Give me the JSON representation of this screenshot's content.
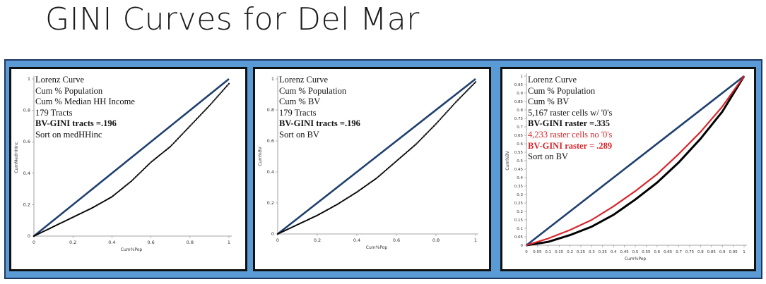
{
  "slide": {
    "title": "GINI Curves for Del Mar"
  },
  "chart_data": [
    {
      "type": "line",
      "legend": [
        "Lorenz Curve",
        "Cum % Population",
        "Cum % Median HH Income",
        "179 Tracts",
        "BV-GINI tracts =.196",
        "Sort on medHHinc"
      ],
      "xlabel": "Cum%Pop",
      "ylabel": "CumMedHHInc",
      "xlim": [
        0,
        1
      ],
      "ylim": [
        0,
        1
      ],
      "xticks": [
        "0",
        "0.2",
        "0.4",
        "0.6",
        "0.8",
        "1"
      ],
      "yticks": [
        "0",
        "0.2",
        "0.4",
        "0.6",
        "0.8",
        "1"
      ],
      "series": [
        {
          "name": "equality",
          "color": "#1f3f6e",
          "x": [
            0,
            1
          ],
          "y": [
            0,
            1
          ]
        },
        {
          "name": "lorenz",
          "color": "#000000",
          "style": "dots",
          "x": [
            0,
            0.1,
            0.2,
            0.3,
            0.4,
            0.5,
            0.6,
            0.7,
            0.8,
            0.9,
            1.0
          ],
          "y": [
            0,
            0.06,
            0.12,
            0.18,
            0.25,
            0.35,
            0.47,
            0.57,
            0.7,
            0.83,
            0.97
          ]
        }
      ]
    },
    {
      "type": "line",
      "legend": [
        "Lorenz Curve",
        "Cum % Population",
        "Cum % BV",
        "179 Tracts",
        "BV-GINI tracts =.196",
        "Sort on BV"
      ],
      "xlabel": "Cum%Pop",
      "ylabel": "Cum%BV",
      "xlim": [
        0,
        1
      ],
      "ylim": [
        0,
        1
      ],
      "xticks": [
        "0",
        "0.2",
        "0.4",
        "0.6",
        "0.8",
        "1"
      ],
      "yticks": [
        "0",
        "0.2",
        "0.4",
        "0.6",
        "0.8",
        "1"
      ],
      "series": [
        {
          "name": "equality",
          "color": "#1f3f6e",
          "x": [
            0,
            1
          ],
          "y": [
            0,
            1
          ]
        },
        {
          "name": "lorenz",
          "color": "#000000",
          "style": "dots",
          "x": [
            0,
            0.1,
            0.2,
            0.3,
            0.4,
            0.5,
            0.6,
            0.7,
            0.8,
            0.9,
            1.0
          ],
          "y": [
            0,
            0.06,
            0.12,
            0.19,
            0.27,
            0.36,
            0.47,
            0.58,
            0.71,
            0.85,
            0.98
          ]
        }
      ]
    },
    {
      "type": "line",
      "legend": [
        "Lorenz Curve",
        "Cum % Population",
        "Cum % BV",
        "5,167 raster cells w/ '0's",
        "BV-GINI raster =.335",
        "4,233 raster cells no '0's",
        "BV-GINI raster = .289",
        "Sort on BV"
      ],
      "xlabel": "Cum%Pop",
      "ylabel": "Cum%BV",
      "xlim": [
        0,
        1
      ],
      "ylim": [
        0,
        1
      ],
      "xticks": [
        "0",
        "0.05",
        "0.1",
        "0.15",
        "0.2",
        "0.25",
        "0.3",
        "0.35",
        "0.4",
        "0.45",
        "0.5",
        "0.55",
        "0.6",
        "0.65",
        "0.7",
        "0.75",
        "0.8",
        "0.85",
        "0.9",
        "0.95",
        "1"
      ],
      "yticks": [
        "0",
        "0.05",
        "0.1",
        "0.15",
        "0.2",
        "0.25",
        "0.3",
        "0.35",
        "0.4",
        "0.45",
        "0.5",
        "0.55",
        "0.6",
        "0.65",
        "0.7",
        "0.75",
        "0.8",
        "0.85",
        "0.9",
        "0.95",
        "1"
      ],
      "series": [
        {
          "name": "equality",
          "color": "#1f3f6e",
          "x": [
            0,
            1
          ],
          "y": [
            0,
            1
          ]
        },
        {
          "name": "with zeros",
          "color": "#000000",
          "x": [
            0,
            0.1,
            0.2,
            0.3,
            0.4,
            0.5,
            0.6,
            0.7,
            0.8,
            0.9,
            1.0
          ],
          "y": [
            0,
            0.02,
            0.06,
            0.11,
            0.18,
            0.27,
            0.37,
            0.49,
            0.63,
            0.79,
            1.0
          ]
        },
        {
          "name": "no zeros",
          "color": "#d9252b",
          "x": [
            0,
            0.1,
            0.2,
            0.3,
            0.4,
            0.5,
            0.6,
            0.7,
            0.8,
            0.9,
            1.0
          ],
          "y": [
            0,
            0.04,
            0.09,
            0.15,
            0.23,
            0.32,
            0.42,
            0.54,
            0.67,
            0.82,
            1.0
          ]
        }
      ]
    }
  ]
}
